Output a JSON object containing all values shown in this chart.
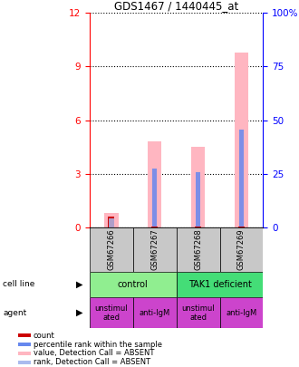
{
  "title": "GDS1467 / 1440445_at",
  "samples": [
    "GSM67266",
    "GSM67267",
    "GSM67268",
    "GSM67269"
  ],
  "pink_bar_values": [
    0.8,
    4.8,
    4.5,
    9.8
  ],
  "red_bar_values": [
    0.6,
    0.05,
    0.05,
    0.05
  ],
  "blue_bar_values": [
    0.55,
    3.3,
    3.1,
    5.5
  ],
  "light_blue_bar_values": [
    0.5,
    0.0,
    0.0,
    0.0
  ],
  "ylim": [
    0,
    12
  ],
  "yticks": [
    0,
    3,
    6,
    9,
    12
  ],
  "y2ticks": [
    0,
    25,
    50,
    75,
    100
  ],
  "y2labels": [
    "0",
    "25",
    "50",
    "75",
    "100%"
  ],
  "cell_line_data": [
    {
      "start": 0,
      "end": 2,
      "label": "control",
      "color": "#90EE90"
    },
    {
      "start": 2,
      "end": 4,
      "label": "TAK1 deficient",
      "color": "#44DD77"
    }
  ],
  "agent_labels": [
    "unstimul\nated",
    "anti-IgM",
    "unstimul\nated",
    "anti-IgM"
  ],
  "agent_color": "#CC44CC",
  "sample_bg_color": "#C8C8C8",
  "pink_color": "#FFB6C1",
  "red_color": "#CC0000",
  "blue_color": "#6688EE",
  "light_blue_color": "#AABBEE",
  "legend_items": [
    [
      "count",
      "#CC0000"
    ],
    [
      "percentile rank within the sample",
      "#6688EE"
    ],
    [
      "value, Detection Call = ABSENT",
      "#FFB6C1"
    ],
    [
      "rank, Detection Call = ABSENT",
      "#AABBEE"
    ]
  ]
}
